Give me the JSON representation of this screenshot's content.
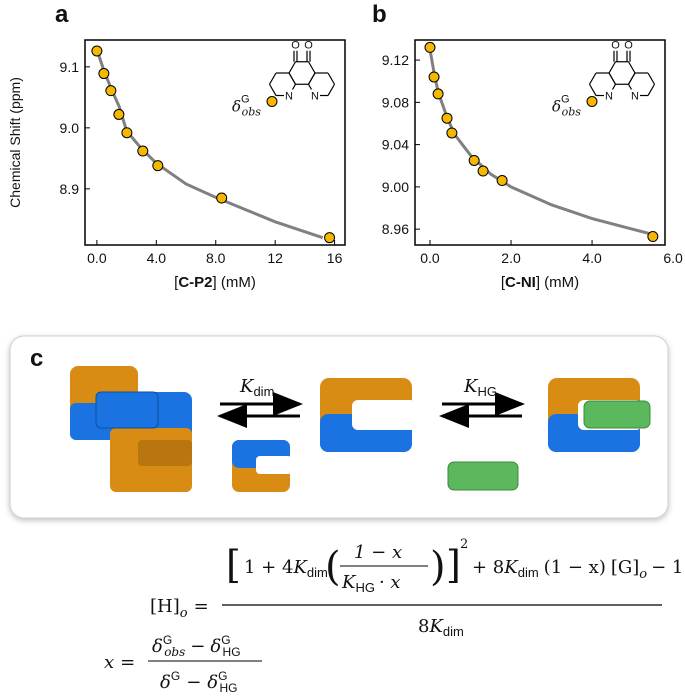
{
  "panel_labels": [
    "a",
    "b",
    "c"
  ],
  "chart_data": [
    {
      "type": "scatter",
      "xlabel": [
        "[",
        "C-P2",
        "] (mM)"
      ],
      "ylabel": "Chemical Shift (ppm)",
      "xlim": [
        -0.8,
        16.7
      ],
      "ylim": [
        8.808,
        9.144
      ],
      "xticks": [
        {
          "value": 0,
          "label": "0.0"
        },
        {
          "value": 4,
          "label": "4.0"
        },
        {
          "value": 8,
          "label": "8.0"
        },
        12,
        16
      ],
      "yticks": [
        8.9,
        {
          "value": 9,
          "label": "9.0"
        },
        9.1
      ],
      "series": [
        {
          "type": "line",
          "color": "#808080",
          "x": [
            0,
            0.5,
            1,
            1.5,
            2,
            3,
            4,
            6,
            8,
            10,
            12,
            15.2
          ],
          "values": [
            9.128,
            9.092,
            9.062,
            9.035,
            8.995,
            8.966,
            8.942,
            8.908,
            8.886,
            8.866,
            8.846,
            8.82
          ]
        },
        {
          "type": "scatter",
          "color": "#f5b800",
          "x": [
            0,
            0.47,
            0.94,
            1.48,
            2.02,
            3.09,
            4.1,
            8.4,
            15.66
          ],
          "values": [
            9.126,
            9.089,
            9.061,
            9.022,
            8.992,
            8.962,
            8.938,
            8.885,
            8.82
          ]
        }
      ]
    },
    {
      "type": "scatter",
      "xlabel": [
        "[",
        "C-NI",
        "] (mM)"
      ],
      "xlim": [
        -0.37,
        5.8
      ],
      "ylim": [
        8.945,
        9.139
      ],
      "xticks": [
        {
          "value": 0,
          "label": "0.0"
        },
        {
          "value": 2,
          "label": "2.0"
        },
        {
          "value": 4,
          "label": "4.0"
        },
        {
          "value": 6,
          "label": "6.0"
        }
      ],
      "yticks": [
        8.96,
        {
          "value": 9,
          "label": "9.00"
        },
        9.04,
        9.08,
        9.12
      ],
      "series": [
        {
          "type": "line",
          "color": "#808080",
          "x": [
            0,
            0.1,
            0.2,
            0.4,
            0.6,
            1,
            1.5,
            2,
            3,
            4,
            5,
            5.5
          ],
          "values": [
            9.13,
            9.108,
            9.09,
            9.068,
            9.05,
            9.03,
            9.012,
            9.0,
            8.983,
            8.97,
            8.96,
            8.955
          ]
        },
        {
          "type": "scatter",
          "color": "#f5b800",
          "x": [
            0,
            0.1,
            0.2,
            0.42,
            0.54,
            1.09,
            1.31,
            1.78,
            5.5
          ],
          "values": [
            9.132,
            9.104,
            9.088,
            9.065,
            9.051,
            9.025,
            9.015,
            9.006,
            8.953
          ]
        }
      ]
    }
  ],
  "inset": {
    "delta": "δ",
    "sub": "obs",
    "sup": "G",
    "oxygen": "O",
    "nitrogen": "N"
  },
  "scheme": {
    "K": "K",
    "dim": "dim",
    "HG": "HG"
  },
  "equation": {
    "lhs": "[H]",
    "o": "o",
    "eq": "=",
    "bracket_open": "[",
    "bracket_close": "]",
    "one_plus_four": "1 + 4",
    "K": "K",
    "dim": "dim",
    "HG": "HG",
    "paren_open": "(",
    "paren_close": ")",
    "one_minus_x": "1 − x",
    "dot_x": "· x",
    "square": "2",
    "plus_eight": "+ 8",
    "one_minus_x_paren": "(1 − x)",
    "G_conc": "[G]",
    "minus_one": "− 1",
    "eight": "8",
    "x": "x",
    "delta": "δ",
    "obs": "obs",
    "G": "G",
    "minus": "−"
  }
}
